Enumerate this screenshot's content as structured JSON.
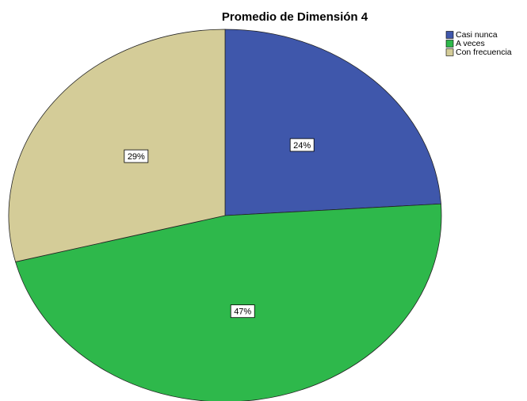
{
  "chart_data": {
    "type": "pie",
    "title": "Promedio de Dimensión 4",
    "categories": [
      "Casi nunca",
      "A veces",
      "Con frecuencia"
    ],
    "values": [
      24,
      47,
      29
    ],
    "value_labels": [
      "24%",
      "47%",
      "29%"
    ],
    "colors": [
      "#3f57ab",
      "#2eb84b",
      "#d4cc98"
    ],
    "legend": "upper right"
  }
}
